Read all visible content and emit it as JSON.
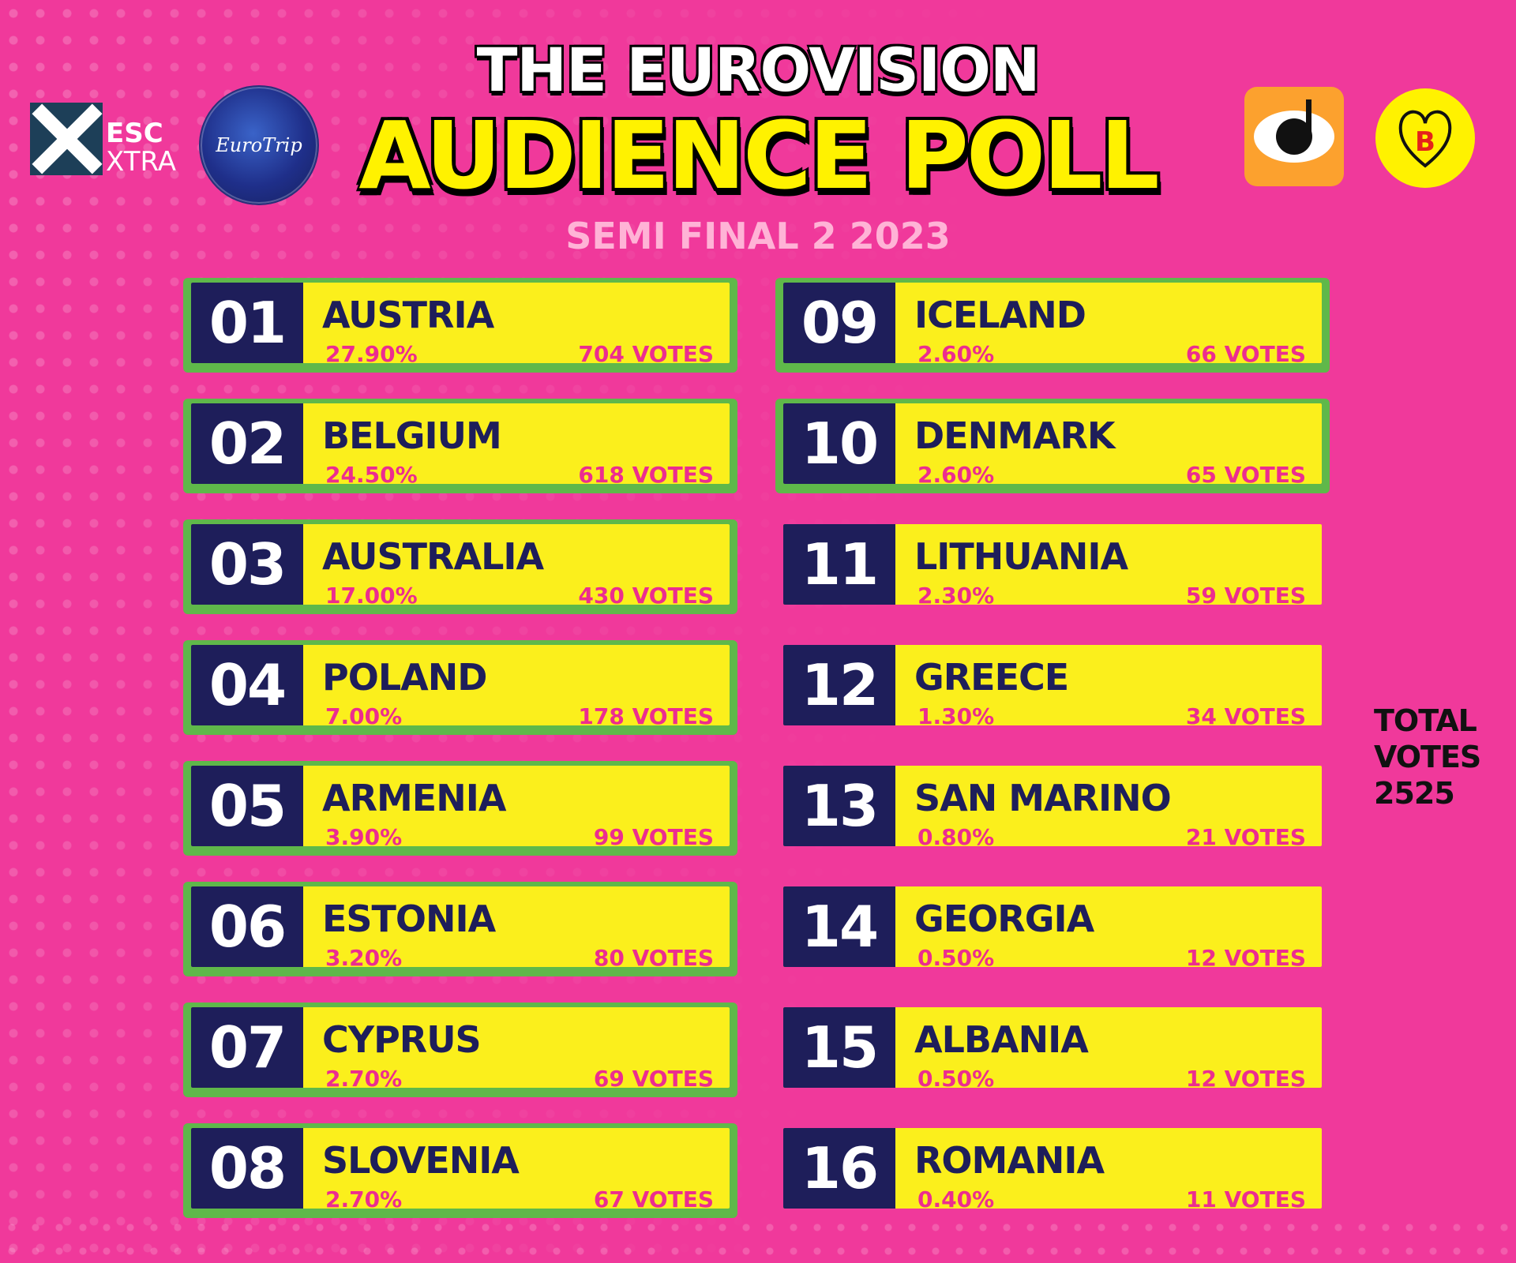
{
  "header": {
    "title_line1": "THE EUROVISION",
    "title_line2": "AUDIENCE POLL",
    "subtitle": "SEMI FINAL 2 2023"
  },
  "logos": {
    "esc_xtra": {
      "word1": "ESC",
      "word2": "XTRA",
      "icon": "esc-xtra-logo"
    },
    "eurotrip": {
      "text": "EuroTrip",
      "icon": "eurotrip-podcast-logo"
    },
    "eye_icon": "music-eye-logo",
    "heart_icon": "heart-b-logo",
    "heart_letter": "B"
  },
  "colors": {
    "background": "#f0399b",
    "card_yellow": "#fbef1c",
    "rank_navy": "#1e1e5a",
    "qualifier_green": "#5fb84a",
    "accent_pink": "#ec2d8f"
  },
  "results": [
    {
      "rank": "01",
      "country": "AUSTRIA",
      "percent": "27.90%",
      "votes": "704 VOTES",
      "highlighted": true
    },
    {
      "rank": "02",
      "country": "BELGIUM",
      "percent": "24.50%",
      "votes": "618 VOTES",
      "highlighted": true
    },
    {
      "rank": "03",
      "country": "AUSTRALIA",
      "percent": "17.00%",
      "votes": "430 VOTES",
      "highlighted": true
    },
    {
      "rank": "04",
      "country": "POLAND",
      "percent": "7.00%",
      "votes": "178 VOTES",
      "highlighted": true
    },
    {
      "rank": "05",
      "country": "ARMENIA",
      "percent": "3.90%",
      "votes": "99 VOTES",
      "highlighted": true
    },
    {
      "rank": "06",
      "country": "ESTONIA",
      "percent": "3.20%",
      "votes": "80 VOTES",
      "highlighted": true
    },
    {
      "rank": "07",
      "country": "CYPRUS",
      "percent": "2.70%",
      "votes": "69 VOTES",
      "highlighted": true
    },
    {
      "rank": "08",
      "country": "SLOVENIA",
      "percent": "2.70%",
      "votes": "67 VOTES",
      "highlighted": true
    },
    {
      "rank": "09",
      "country": "ICELAND",
      "percent": "2.60%",
      "votes": "66 VOTES",
      "highlighted": true
    },
    {
      "rank": "10",
      "country": "DENMARK",
      "percent": "2.60%",
      "votes": "65 VOTES",
      "highlighted": true
    },
    {
      "rank": "11",
      "country": "LITHUANIA",
      "percent": "2.30%",
      "votes": "59 VOTES",
      "highlighted": false
    },
    {
      "rank": "12",
      "country": "GREECE",
      "percent": "1.30%",
      "votes": "34 VOTES",
      "highlighted": false
    },
    {
      "rank": "13",
      "country": "SAN MARINO",
      "percent": "0.80%",
      "votes": "21 VOTES",
      "highlighted": false
    },
    {
      "rank": "14",
      "country": "GEORGIA",
      "percent": "0.50%",
      "votes": "12 VOTES",
      "highlighted": false
    },
    {
      "rank": "15",
      "country": "ALBANIA",
      "percent": "0.50%",
      "votes": "12 VOTES",
      "highlighted": false
    },
    {
      "rank": "16",
      "country": "ROMANIA",
      "percent": "0.40%",
      "votes": "11 VOTES",
      "highlighted": false
    }
  ],
  "total": {
    "line1": "TOTAL",
    "line2": "VOTES",
    "value": "2525"
  }
}
